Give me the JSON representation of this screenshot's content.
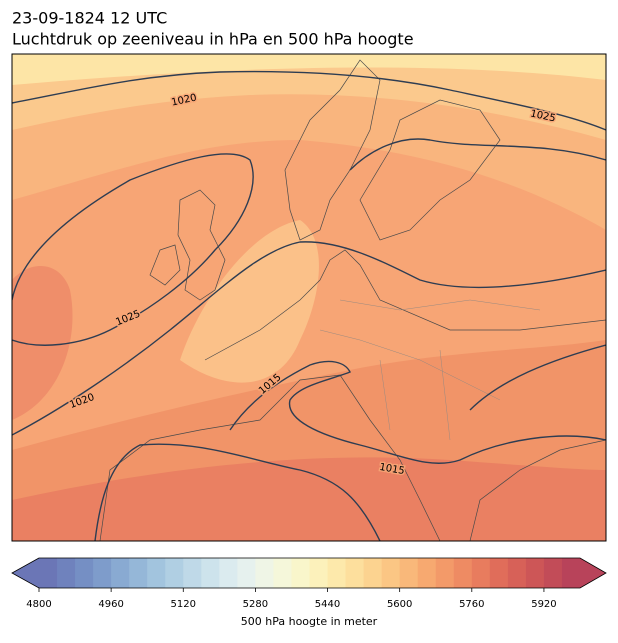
{
  "header": {
    "date": "23-09-1824 12 UTC",
    "title": "Luchtdruk op zeeniveau in hPa en 500 hPa hoogte"
  },
  "map": {
    "isobar_labels": [
      1020,
      1025,
      1025,
      1020,
      1015,
      1015
    ]
  },
  "colorbar": {
    "range": [
      4800,
      6000
    ],
    "ticks": [
      4800,
      4960,
      5120,
      5280,
      5440,
      5600,
      5760,
      5920
    ],
    "label": "500 hPa hoogte in meter",
    "colors": [
      "#6b76b6",
      "#6f82bd",
      "#758fc4",
      "#7e9ccb",
      "#89aad2",
      "#95b7d8",
      "#a2c4de",
      "#b0cfe3",
      "#bfd9e8",
      "#cde3ec",
      "#dbebef",
      "#e6f1ee",
      "#eff5e6",
      "#f5f7da",
      "#f9f6cb",
      "#fcf1bb",
      "#fde9ab",
      "#fddf9d",
      "#fcd390",
      "#fbc684",
      "#f9b87a",
      "#f7a970",
      "#f39a69",
      "#ee8b63",
      "#e87c5e",
      "#e06d5a",
      "#d76158",
      "#cd5657",
      "#c24c58",
      "#b8435a"
    ]
  }
}
